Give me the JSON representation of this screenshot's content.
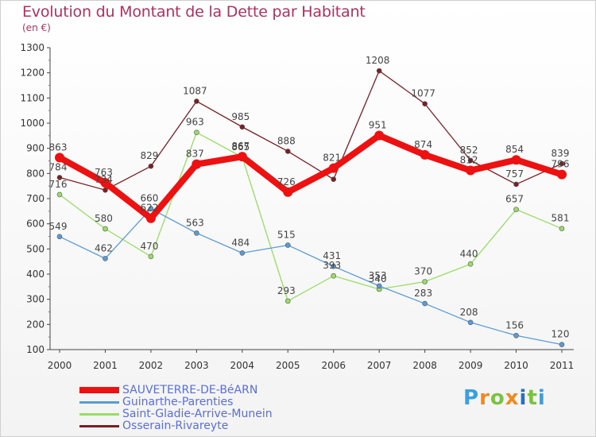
{
  "title": "Evolution du Montant de la Dette par Habitant",
  "subtitle": "(en €)",
  "logo": "Proxiti",
  "chart_data": {
    "type": "line",
    "title": "Evolution du Montant de la Dette par Habitant",
    "subtitle": "(en €)",
    "xlabel": "",
    "ylabel": "",
    "ylim": [
      100,
      1300
    ],
    "yticks": [
      100,
      200,
      300,
      400,
      500,
      600,
      700,
      800,
      900,
      1000,
      1100,
      1200,
      1300
    ],
    "categories": [
      "2000",
      "2001",
      "2002",
      "2003",
      "2004",
      "2005",
      "2006",
      "2007",
      "2008",
      "2009",
      "2010",
      "2011"
    ],
    "grid": false,
    "legend_position": "bottom-left",
    "series": [
      {
        "name": "SAUVETERRE-DE-BéARN",
        "color": "#ee1111",
        "line_width": 8,
        "values": [
          863,
          763,
          622,
          837,
          867,
          726,
          821,
          951,
          874,
          812,
          854,
          796
        ],
        "labels": [
          "863",
          "763",
          "622",
          "837",
          "867",
          "726",
          "821",
          "951",
          "874",
          "812",
          "854",
          "796"
        ]
      },
      {
        "name": "Guinarthe-Parenties",
        "color": "#5b9bd5",
        "line_width": 1.3,
        "values": [
          549,
          462,
          660,
          563,
          484,
          515,
          431,
          353,
          283,
          208,
          156,
          120
        ],
        "labels": [
          "549",
          "462",
          "660",
          "563",
          "484",
          "515",
          "431",
          "353",
          "283",
          "208",
          "156",
          "120"
        ]
      },
      {
        "name": "Saint-Gladie-Arrive-Munein",
        "color": "#99dd66",
        "line_width": 1.3,
        "values": [
          716,
          580,
          470,
          963,
          865,
          293,
          393,
          340,
          370,
          440,
          657,
          581
        ],
        "labels": [
          "716",
          "580",
          "470",
          "963",
          "865",
          "293",
          "393",
          "340",
          "370",
          "440",
          "657",
          "581"
        ]
      },
      {
        "name": "Osserain-Rivareyte",
        "color": "#7a1f24",
        "line_width": 1.3,
        "values": [
          784,
          734,
          829,
          1087,
          985,
          888,
          777,
          1208,
          1077,
          852,
          757,
          839
        ],
        "labels": [
          "784",
          "734",
          "829",
          "1087",
          "985",
          "888",
          "",
          "1208",
          "1077",
          "852",
          "757",
          "839"
        ]
      }
    ]
  }
}
